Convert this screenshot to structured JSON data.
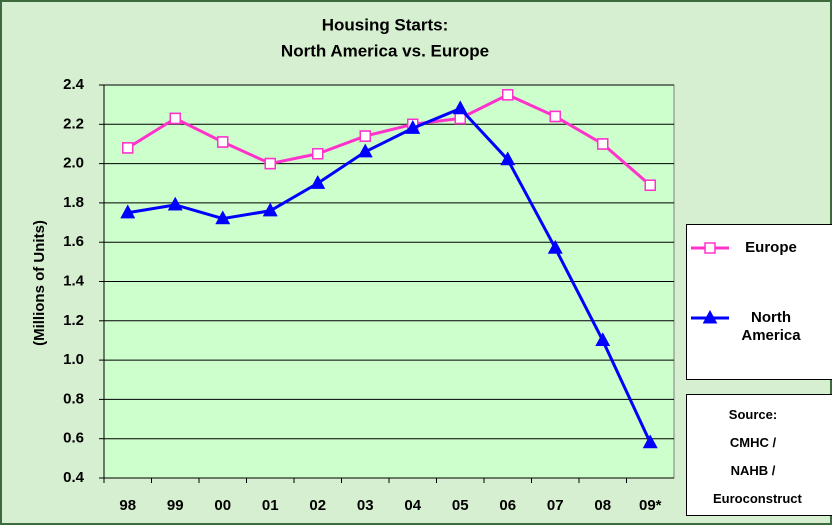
{
  "chart_data": {
    "type": "line",
    "title": [
      "Housing Starts:",
      "North America vs. Europe"
    ],
    "y_label": "(Millions of Units)",
    "categories": [
      "98",
      "99",
      "00",
      "01",
      "02",
      "03",
      "04",
      "05",
      "06",
      "07",
      "08",
      "09*"
    ],
    "series": [
      {
        "name": "Europe",
        "color": "#ff33cc",
        "marker": "square",
        "values": [
          2.08,
          2.23,
          2.11,
          2.0,
          2.05,
          2.14,
          2.2,
          2.23,
          2.35,
          2.24,
          2.1,
          1.89
        ]
      },
      {
        "name": "North America",
        "color": "#0000ff",
        "marker": "triangle",
        "values": [
          1.75,
          1.79,
          1.72,
          1.76,
          1.9,
          2.06,
          2.18,
          2.28,
          2.02,
          1.57,
          1.1,
          0.58
        ]
      }
    ],
    "ylim": [
      0.4,
      2.4
    ],
    "yticks": [
      {
        "value": 0.4,
        "label": "0.4"
      },
      0.6,
      0.8,
      {
        "value": 1,
        "label": "1.0"
      },
      1.2,
      1.4,
      1.6,
      1.8,
      {
        "value": 2,
        "label": "2.0"
      },
      2.2,
      2.4
    ],
    "grid": true,
    "source": "Source: CMHC / NAHB / Euroconstruct"
  }
}
